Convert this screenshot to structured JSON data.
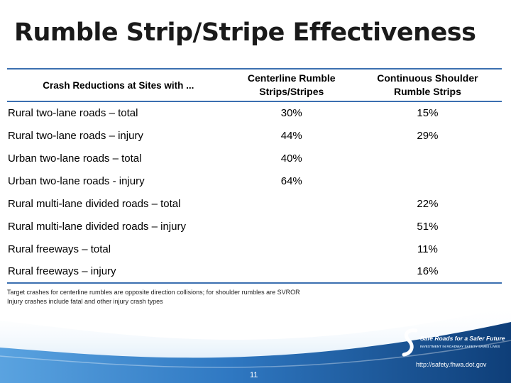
{
  "title": "Rumble Strip/Stripe Effectiveness",
  "table": {
    "headers": {
      "label": "Crash Reductions at Sites with ...",
      "centerline": "Centerline Rumble Strips/Stripes",
      "shoulder": "Continuous Shoulder Rumble Strips"
    },
    "rows": [
      {
        "label": "Rural two-lane roads – total",
        "centerline": "30%",
        "shoulder": "15%"
      },
      {
        "label": "Rural two-lane roads – injury",
        "centerline": "44%",
        "shoulder": "29%"
      },
      {
        "label": "Urban two-lane roads – total",
        "centerline": "40%",
        "shoulder": ""
      },
      {
        "label": "Urban two-lane roads - injury",
        "centerline": "64%",
        "shoulder": ""
      },
      {
        "label": "Rural multi-lane divided roads – total",
        "centerline": "",
        "shoulder": "22%"
      },
      {
        "label": "Rural multi-lane divided roads – injury",
        "centerline": "",
        "shoulder": "51%"
      },
      {
        "label": "Rural freeways – total",
        "centerline": "",
        "shoulder": "11%"
      },
      {
        "label": "Rural freeways – injury",
        "centerline": "",
        "shoulder": "16%"
      }
    ]
  },
  "notes": [
    "Target crashes for centerline rumbles are opposite direction collisions; for shoulder rumbles are SVROR",
    "Injury crashes include fatal and other injury crash types"
  ],
  "footer": {
    "page_number": "11",
    "logo_name": "Safe Roads for a Safer Future",
    "logo_tagline": "INVESTMENT IN ROADWAY SAFETY SAVES LIVES",
    "url": "http://safety.fhwa.dot.gov"
  },
  "colors": {
    "rule": "#3b6fb0",
    "footer_light": "#4a93d4",
    "footer_dark": "#0e3e78"
  }
}
